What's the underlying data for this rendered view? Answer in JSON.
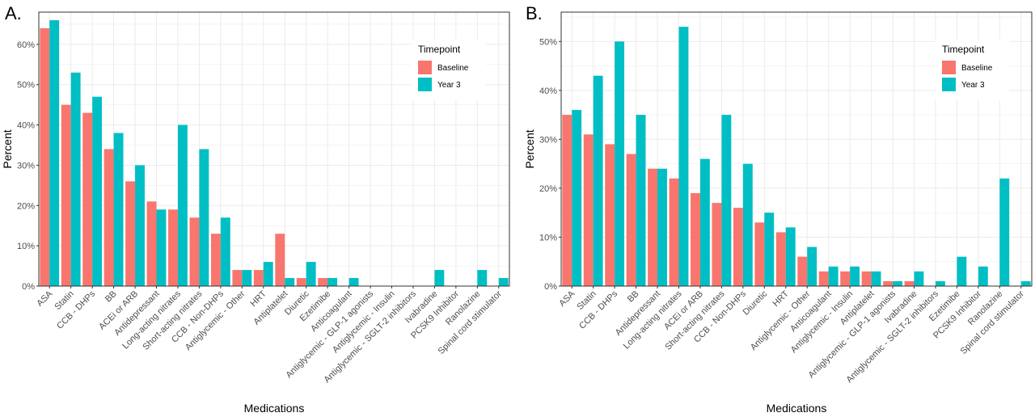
{
  "legend": {
    "title": "Timepoint",
    "entries": [
      "Baseline",
      "Year 3"
    ]
  },
  "colors": {
    "baseline": "#F8766D",
    "year3": "#00BFC4",
    "grid": "#EBEBEB",
    "panel_border": "#333333"
  },
  "chart_data": [
    {
      "panel_label": "A.",
      "type": "bar",
      "xlabel": "Medications",
      "ylabel": "Percent",
      "ylim": [
        0,
        68
      ],
      "y_ticks": [
        0,
        10,
        20,
        30,
        40,
        50,
        60
      ],
      "y_tick_labels": [
        "0%",
        "10%",
        "20%",
        "30%",
        "40%",
        "50%",
        "60%"
      ],
      "grid": true,
      "legend_position": "top-right",
      "categories": [
        "ASA",
        "Statin",
        "CCB - DHPs",
        "BB",
        "ACEi or ARB",
        "Antidepressant",
        "Long-acting nitrates",
        "Short-acting nitrates",
        "CCB - Non-DHPs",
        "Antiglycemic - Other",
        "HRT",
        "Antiplatelet",
        "Diuretic",
        "Ezetimibe",
        "Anticoagulant",
        "Antiglycemic - GLP-1 agonists",
        "Antiglycemic - Insulin",
        "Antiglycemic - SGLT-2 inhibitors",
        "Ivabradine",
        "PCSK9 Inhibitor",
        "Ranolazine",
        "Spinal cord stimulator"
      ],
      "series": [
        {
          "name": "Baseline",
          "values": [
            64,
            45,
            43,
            34,
            26,
            21,
            19,
            17,
            13,
            4,
            4,
            13,
            2,
            2,
            0,
            0,
            0,
            0,
            0,
            0,
            0,
            0
          ]
        },
        {
          "name": "Year 3",
          "values": [
            66,
            53,
            47,
            38,
            30,
            19,
            40,
            34,
            17,
            4,
            6,
            2,
            6,
            2,
            2,
            0,
            0,
            0,
            4,
            0,
            4,
            2
          ]
        }
      ]
    },
    {
      "panel_label": "B.",
      "type": "bar",
      "xlabel": "Medications",
      "ylabel": "Percent",
      "ylim": [
        0,
        56
      ],
      "y_ticks": [
        0,
        10,
        20,
        30,
        40,
        50
      ],
      "y_tick_labels": [
        "0%",
        "10%",
        "20%",
        "30%",
        "40%",
        "50%"
      ],
      "grid": true,
      "legend_position": "top-right",
      "categories": [
        "ASA",
        "Statin",
        "CCB - DHPs",
        "BB",
        "Antidepressant",
        "Long-acting nitrates",
        "ACEi or ARB",
        "Short-acting nitrates",
        "CCB - Non-DHPs",
        "Diuretic",
        "HRT",
        "Antiglycemic - Other",
        "Anticoagulant",
        "Antiglycemic - Insulin",
        "Antiplatelet",
        "Antiglycemic - GLP-1 agonists",
        "Ivabradine",
        "Antiglycemic - SGLT-2 inhibitors",
        "Ezetimibe",
        "PCSK9 Inhibitor",
        "Ranolazine",
        "Spinal cord stimulator"
      ],
      "series": [
        {
          "name": "Baseline",
          "values": [
            35,
            31,
            29,
            27,
            24,
            22,
            19,
            17,
            16,
            13,
            11,
            6,
            3,
            3,
            3,
            1,
            1,
            0,
            0,
            0,
            0,
            0
          ]
        },
        {
          "name": "Year 3",
          "values": [
            36,
            43,
            50,
            35,
            24,
            53,
            26,
            35,
            25,
            15,
            12,
            8,
            4,
            4,
            3,
            1,
            3,
            1,
            6,
            4,
            22,
            1
          ]
        }
      ]
    }
  ]
}
